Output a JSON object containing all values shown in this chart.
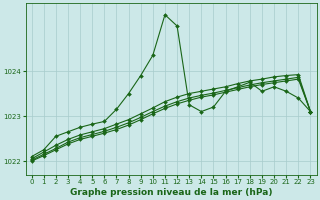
{
  "title": "Graphe pression niveau de la mer (hPa)",
  "background_color": "#cce8e8",
  "grid_color": "#a8cccc",
  "line_color": "#1a6618",
  "xlim": [
    -0.5,
    23.5
  ],
  "ylim": [
    1021.7,
    1025.5
  ],
  "yticks": [
    1022,
    1023,
    1024
  ],
  "xticks": [
    0,
    1,
    2,
    3,
    4,
    5,
    6,
    7,
    8,
    9,
    10,
    11,
    12,
    13,
    14,
    15,
    16,
    17,
    18,
    19,
    20,
    21,
    22,
    23
  ],
  "series": [
    [
      1022.1,
      1022.25,
      1022.55,
      1022.65,
      1022.75,
      1022.82,
      1022.88,
      1023.15,
      1023.5,
      1023.9,
      1024.35,
      1025.25,
      1025.0,
      1023.25,
      1023.1,
      1023.2,
      1023.55,
      1023.65,
      1023.75,
      1023.55,
      1023.65,
      1023.55,
      1023.4,
      1023.1
    ],
    [
      1022.05,
      1022.2,
      1022.35,
      1022.48,
      1022.58,
      1022.65,
      1022.72,
      1022.82,
      1022.92,
      1023.05,
      1023.18,
      1023.32,
      1023.42,
      1023.5,
      1023.55,
      1023.6,
      1023.65,
      1023.72,
      1023.78,
      1023.82,
      1023.87,
      1023.9,
      1023.92,
      1023.1
    ],
    [
      1022.0,
      1022.12,
      1022.25,
      1022.38,
      1022.48,
      1022.55,
      1022.62,
      1022.7,
      1022.8,
      1022.92,
      1023.05,
      1023.17,
      1023.27,
      1023.35,
      1023.42,
      1023.47,
      1023.53,
      1023.59,
      1023.65,
      1023.7,
      1023.74,
      1023.78,
      1023.82,
      1023.1
    ],
    [
      1022.02,
      1022.15,
      1022.28,
      1022.42,
      1022.52,
      1022.59,
      1022.66,
      1022.75,
      1022.85,
      1022.97,
      1023.1,
      1023.22,
      1023.32,
      1023.4,
      1023.46,
      1023.51,
      1023.57,
      1023.63,
      1023.69,
      1023.74,
      1023.78,
      1023.82,
      1023.86,
      1023.1
    ]
  ],
  "marker": "D",
  "markersize": 2.0,
  "linewidth": 0.8,
  "tick_fontsize": 5.0,
  "xlabel_fontsize": 6.5
}
